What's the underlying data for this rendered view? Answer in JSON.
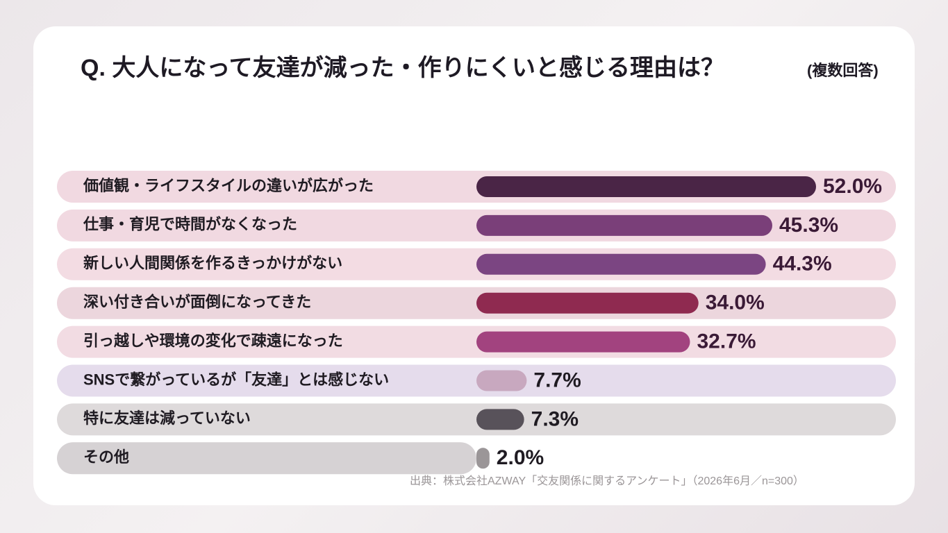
{
  "chart_data": {
    "type": "bar",
    "orientation": "horizontal",
    "title": "Q. 大人になって友達が減った・作りにくいと感じる理由は？",
    "subtitle": "(複数回答)",
    "categories": [
      "価値観・ライフスタイルの違いが広がった",
      "仕事・育児で時間がなくなった",
      "新しい人間関係を作るきっかけがない",
      "深い付き合いが面倒になってきた",
      "引っ越しや環境の変化で疎遠になった",
      "SNSで繋がっているが「友達」とは感じない",
      "特に友達は減っていない",
      "その他"
    ],
    "values": [
      52.0,
      45.3,
      44.3,
      34.0,
      32.7,
      7.7,
      7.3,
      2.0
    ],
    "value_labels": [
      "52.0%",
      "45.3%",
      "44.3%",
      "34.0%",
      "32.7%",
      "7.7%",
      "7.3%",
      "2.0%"
    ],
    "colors": [
      "#4a2546",
      "#7a3f79",
      "#7b4582",
      "#8f2a50",
      "#a2437f",
      "#c8a8bf",
      "#58525a",
      "#9b9698"
    ],
    "source": "出典：株式会社AZWAY「交友関係に関するアンケート」（2026年6月／n=300）"
  }
}
